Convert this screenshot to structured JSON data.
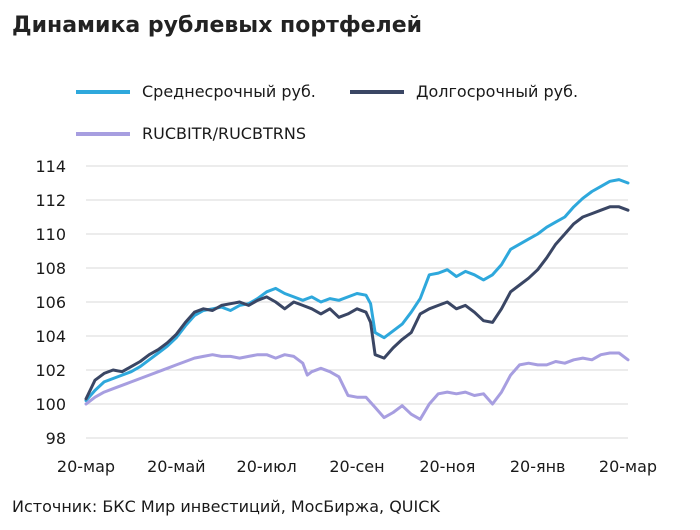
{
  "title": "Динамика рублевых портфелей",
  "source": "Источник: БКС Мир инвестиций, МосБиржа, QUICK",
  "chart_data": {
    "type": "line",
    "title": "Динамика рублевых портфелей",
    "ylim": [
      98,
      114
    ],
    "yticks": [
      98,
      100,
      102,
      104,
      106,
      108,
      110,
      112,
      114
    ],
    "xlim": [
      0,
      12
    ],
    "x_unit": "months since 20-мар",
    "xticks": [
      {
        "x": 0,
        "label": "20-мар"
      },
      {
        "x": 2,
        "label": "20-май"
      },
      {
        "x": 4,
        "label": "20-июл"
      },
      {
        "x": 6,
        "label": "20-сен"
      },
      {
        "x": 8,
        "label": "20-ноя"
      },
      {
        "x": 10,
        "label": "20-янв"
      },
      {
        "x": 12,
        "label": "20-мар"
      }
    ],
    "grid": true,
    "legend": "top",
    "series": [
      {
        "name": "Среднесрочный руб.",
        "color": "#2ea8dc",
        "points": [
          [
            0.0,
            100.2
          ],
          [
            0.2,
            100.8
          ],
          [
            0.4,
            101.3
          ],
          [
            0.6,
            101.5
          ],
          [
            0.8,
            101.7
          ],
          [
            1.0,
            101.9
          ],
          [
            1.2,
            102.2
          ],
          [
            1.4,
            102.6
          ],
          [
            1.6,
            103.0
          ],
          [
            1.8,
            103.4
          ],
          [
            2.0,
            103.9
          ],
          [
            2.2,
            104.6
          ],
          [
            2.4,
            105.2
          ],
          [
            2.6,
            105.5
          ],
          [
            2.8,
            105.6
          ],
          [
            3.0,
            105.7
          ],
          [
            3.2,
            105.5
          ],
          [
            3.4,
            105.8
          ],
          [
            3.6,
            105.9
          ],
          [
            3.8,
            106.2
          ],
          [
            4.0,
            106.6
          ],
          [
            4.2,
            106.8
          ],
          [
            4.4,
            106.5
          ],
          [
            4.6,
            106.3
          ],
          [
            4.8,
            106.1
          ],
          [
            5.0,
            106.3
          ],
          [
            5.2,
            106.0
          ],
          [
            5.4,
            106.2
          ],
          [
            5.6,
            106.1
          ],
          [
            5.8,
            106.3
          ],
          [
            6.0,
            106.5
          ],
          [
            6.2,
            106.4
          ],
          [
            6.3,
            105.9
          ],
          [
            6.4,
            104.2
          ],
          [
            6.6,
            103.9
          ],
          [
            6.8,
            104.3
          ],
          [
            7.0,
            104.7
          ],
          [
            7.2,
            105.4
          ],
          [
            7.4,
            106.2
          ],
          [
            7.6,
            107.6
          ],
          [
            7.8,
            107.7
          ],
          [
            8.0,
            107.9
          ],
          [
            8.2,
            107.5
          ],
          [
            8.4,
            107.8
          ],
          [
            8.6,
            107.6
          ],
          [
            8.8,
            107.3
          ],
          [
            9.0,
            107.6
          ],
          [
            9.2,
            108.2
          ],
          [
            9.4,
            109.1
          ],
          [
            9.6,
            109.4
          ],
          [
            9.8,
            109.7
          ],
          [
            10.0,
            110.0
          ],
          [
            10.2,
            110.4
          ],
          [
            10.4,
            110.7
          ],
          [
            10.6,
            111.0
          ],
          [
            10.8,
            111.6
          ],
          [
            11.0,
            112.1
          ],
          [
            11.2,
            112.5
          ],
          [
            11.4,
            112.8
          ],
          [
            11.6,
            113.1
          ],
          [
            11.8,
            113.2
          ],
          [
            12.0,
            113.0
          ]
        ]
      },
      {
        "name": "Долгосрочный руб.",
        "color": "#3a4664",
        "points": [
          [
            0.0,
            100.3
          ],
          [
            0.2,
            101.4
          ],
          [
            0.4,
            101.8
          ],
          [
            0.6,
            102.0
          ],
          [
            0.8,
            101.9
          ],
          [
            1.0,
            102.2
          ],
          [
            1.2,
            102.5
          ],
          [
            1.4,
            102.9
          ],
          [
            1.6,
            103.2
          ],
          [
            1.8,
            103.6
          ],
          [
            2.0,
            104.1
          ],
          [
            2.2,
            104.8
          ],
          [
            2.4,
            105.4
          ],
          [
            2.6,
            105.6
          ],
          [
            2.8,
            105.5
          ],
          [
            3.0,
            105.8
          ],
          [
            3.2,
            105.9
          ],
          [
            3.4,
            106.0
          ],
          [
            3.6,
            105.8
          ],
          [
            3.8,
            106.1
          ],
          [
            4.0,
            106.3
          ],
          [
            4.2,
            106.0
          ],
          [
            4.4,
            105.6
          ],
          [
            4.6,
            106.0
          ],
          [
            4.8,
            105.8
          ],
          [
            5.0,
            105.6
          ],
          [
            5.2,
            105.3
          ],
          [
            5.4,
            105.6
          ],
          [
            5.6,
            105.1
          ],
          [
            5.8,
            105.3
          ],
          [
            6.0,
            105.6
          ],
          [
            6.2,
            105.4
          ],
          [
            6.3,
            104.8
          ],
          [
            6.4,
            102.9
          ],
          [
            6.6,
            102.7
          ],
          [
            6.8,
            103.3
          ],
          [
            7.0,
            103.8
          ],
          [
            7.2,
            104.2
          ],
          [
            7.4,
            105.3
          ],
          [
            7.6,
            105.6
          ],
          [
            7.8,
            105.8
          ],
          [
            8.0,
            106.0
          ],
          [
            8.2,
            105.6
          ],
          [
            8.4,
            105.8
          ],
          [
            8.6,
            105.4
          ],
          [
            8.8,
            104.9
          ],
          [
            9.0,
            104.8
          ],
          [
            9.2,
            105.6
          ],
          [
            9.4,
            106.6
          ],
          [
            9.6,
            107.0
          ],
          [
            9.8,
            107.4
          ],
          [
            10.0,
            107.9
          ],
          [
            10.2,
            108.6
          ],
          [
            10.4,
            109.4
          ],
          [
            10.6,
            110.0
          ],
          [
            10.8,
            110.6
          ],
          [
            11.0,
            111.0
          ],
          [
            11.2,
            111.2
          ],
          [
            11.4,
            111.4
          ],
          [
            11.6,
            111.6
          ],
          [
            11.8,
            111.6
          ],
          [
            12.0,
            111.4
          ]
        ]
      },
      {
        "name": "RUCBITR/RUCBTRNS",
        "color": "#a79ee0",
        "points": [
          [
            0.0,
            100.0
          ],
          [
            0.2,
            100.4
          ],
          [
            0.4,
            100.7
          ],
          [
            0.6,
            100.9
          ],
          [
            0.8,
            101.1
          ],
          [
            1.0,
            101.3
          ],
          [
            1.2,
            101.5
          ],
          [
            1.4,
            101.7
          ],
          [
            1.6,
            101.9
          ],
          [
            1.8,
            102.1
          ],
          [
            2.0,
            102.3
          ],
          [
            2.2,
            102.5
          ],
          [
            2.4,
            102.7
          ],
          [
            2.6,
            102.8
          ],
          [
            2.8,
            102.9
          ],
          [
            3.0,
            102.8
          ],
          [
            3.2,
            102.8
          ],
          [
            3.4,
            102.7
          ],
          [
            3.6,
            102.8
          ],
          [
            3.8,
            102.9
          ],
          [
            4.0,
            102.9
          ],
          [
            4.2,
            102.7
          ],
          [
            4.4,
            102.9
          ],
          [
            4.6,
            102.8
          ],
          [
            4.8,
            102.4
          ],
          [
            4.9,
            101.7
          ],
          [
            5.0,
            101.9
          ],
          [
            5.2,
            102.1
          ],
          [
            5.4,
            101.9
          ],
          [
            5.6,
            101.6
          ],
          [
            5.8,
            100.5
          ],
          [
            6.0,
            100.4
          ],
          [
            6.2,
            100.4
          ],
          [
            6.4,
            99.8
          ],
          [
            6.6,
            99.2
          ],
          [
            6.8,
            99.5
          ],
          [
            7.0,
            99.9
          ],
          [
            7.2,
            99.4
          ],
          [
            7.4,
            99.1
          ],
          [
            7.6,
            100.0
          ],
          [
            7.8,
            100.6
          ],
          [
            8.0,
            100.7
          ],
          [
            8.2,
            100.6
          ],
          [
            8.4,
            100.7
          ],
          [
            8.6,
            100.5
          ],
          [
            8.8,
            100.6
          ],
          [
            9.0,
            100.0
          ],
          [
            9.2,
            100.7
          ],
          [
            9.4,
            101.7
          ],
          [
            9.6,
            102.3
          ],
          [
            9.8,
            102.4
          ],
          [
            10.0,
            102.3
          ],
          [
            10.2,
            102.3
          ],
          [
            10.4,
            102.5
          ],
          [
            10.6,
            102.4
          ],
          [
            10.8,
            102.6
          ],
          [
            11.0,
            102.7
          ],
          [
            11.2,
            102.6
          ],
          [
            11.4,
            102.9
          ],
          [
            11.6,
            103.0
          ],
          [
            11.8,
            103.0
          ],
          [
            12.0,
            102.6
          ]
        ]
      }
    ]
  }
}
